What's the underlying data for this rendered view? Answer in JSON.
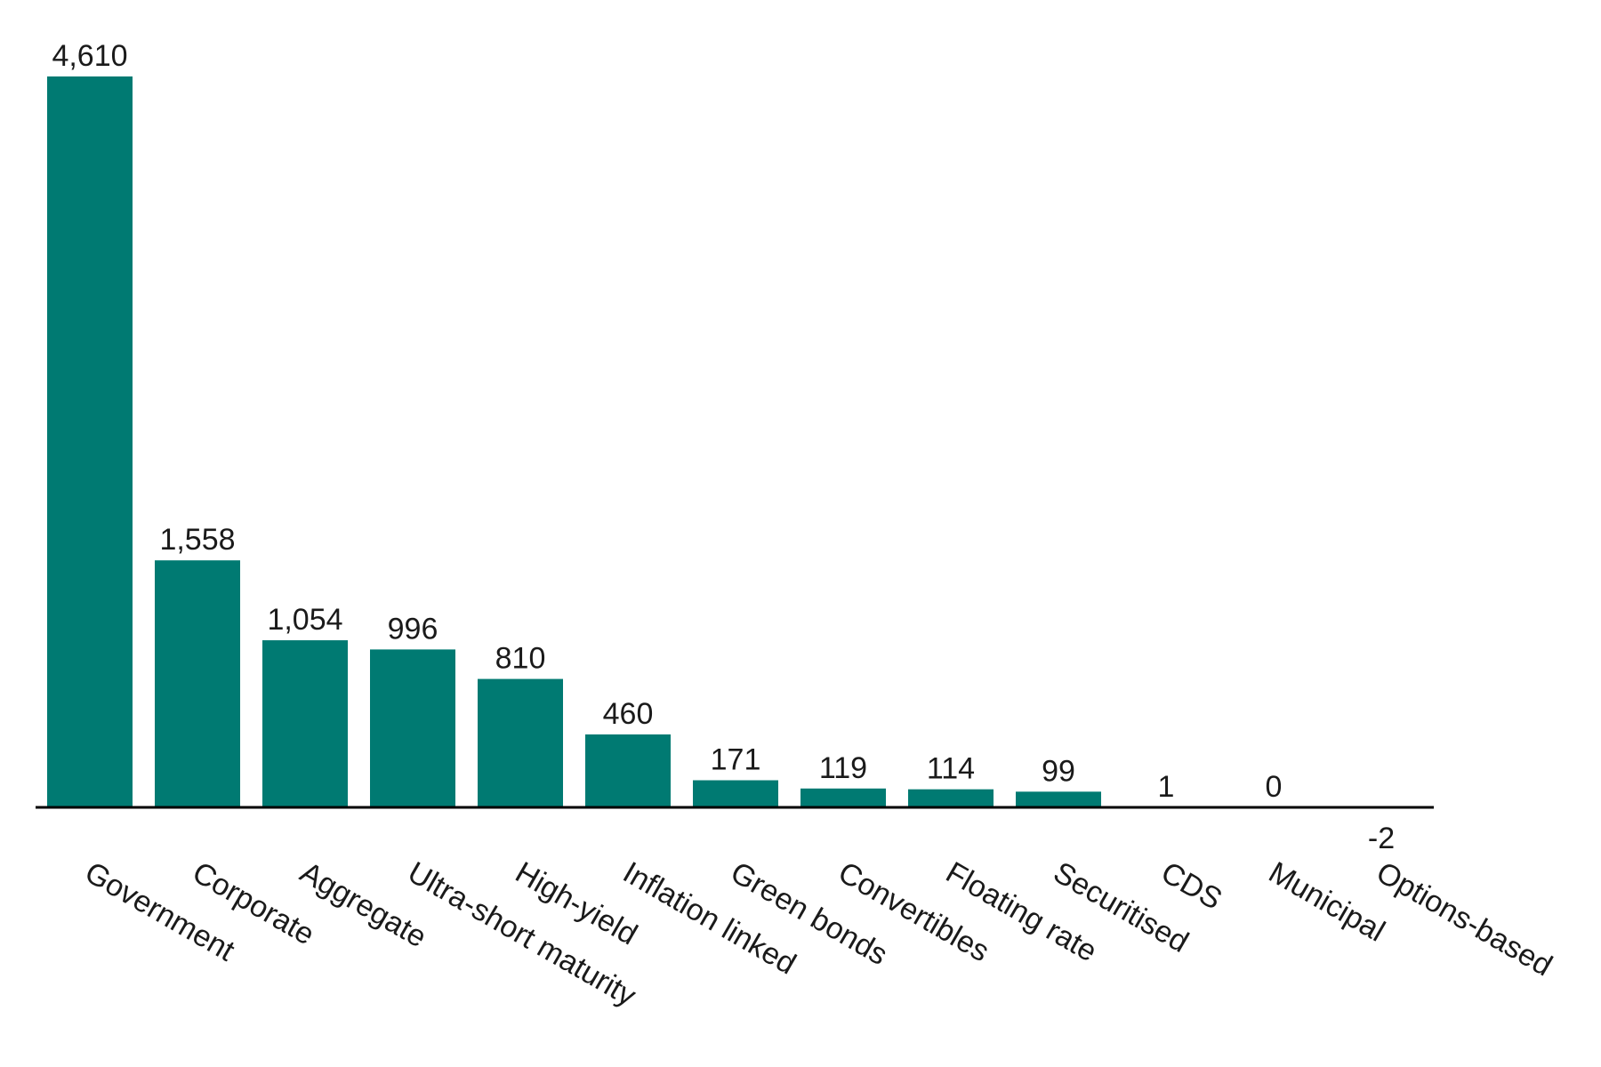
{
  "chart_data": {
    "type": "bar",
    "categories": [
      "Government",
      "Corporate",
      "Aggregate",
      "Ultra-short maturity",
      "High-yield",
      "Inflation linked",
      "Green bonds",
      "Convertibles",
      "Floating rate",
      "Securitised",
      "CDS",
      "Municipal",
      "Options-based"
    ],
    "values": [
      4610,
      1558,
      1054,
      996,
      810,
      460,
      171,
      119,
      114,
      99,
      1,
      0,
      -2
    ],
    "value_labels": [
      "4,610",
      "1,558",
      "1,054",
      "996",
      "810",
      "460",
      "171",
      "119",
      "114",
      "99",
      "1",
      "0",
      "-2"
    ],
    "title": "",
    "xlabel": "",
    "ylabel": "",
    "grid": false,
    "legend": "none",
    "bar_color": "#007a72",
    "axis_color": "#000000"
  }
}
